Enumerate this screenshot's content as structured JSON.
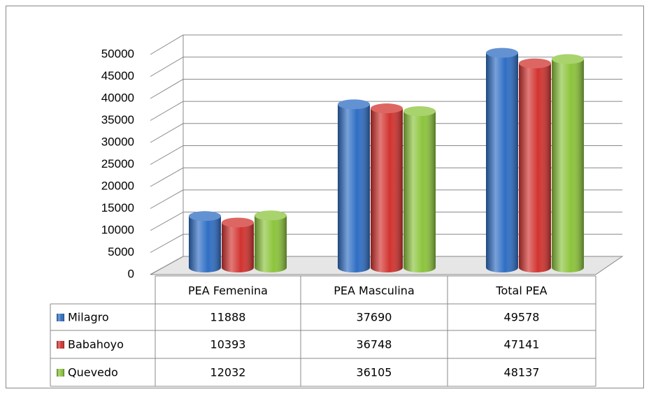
{
  "chart_data": {
    "type": "bar3d",
    "categories": [
      "PEA Femenina",
      "PEA Masculina",
      "Total PEA"
    ],
    "series": [
      {
        "name": "Milagro",
        "color": "#2f6ec4",
        "values": [
          11888,
          37690,
          49578
        ]
      },
      {
        "name": "Babahoyo",
        "color": "#d2332f",
        "values": [
          10393,
          36748,
          47141
        ]
      },
      {
        "name": "Quevedo",
        "color": "#8cc43c",
        "values": [
          12032,
          36105,
          48137
        ]
      }
    ],
    "ylim": [
      0,
      50000
    ],
    "yticks": [
      0,
      5000,
      10000,
      15000,
      20000,
      25000,
      30000,
      35000,
      40000,
      45000,
      50000
    ],
    "grid": true,
    "data_table": true
  }
}
